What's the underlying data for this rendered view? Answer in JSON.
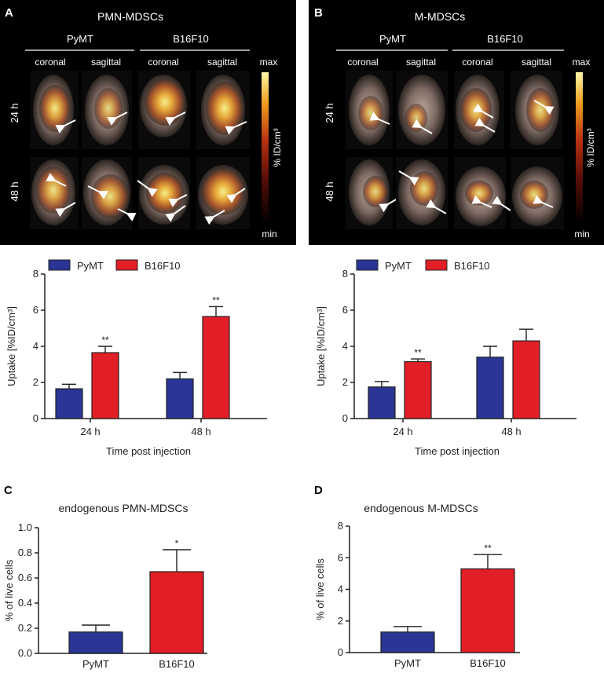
{
  "panels": {
    "A": {
      "letter": "A",
      "title": "PMN-MDSCs",
      "groups": [
        "PyMT",
        "B16F10"
      ],
      "views": [
        "coronal",
        "sagittal",
        "coronal",
        "sagittal"
      ],
      "rows": [
        "24 h",
        "48 h"
      ],
      "scale": {
        "max": "max",
        "min": "min",
        "label": "% ID/cm³"
      }
    },
    "B": {
      "letter": "B",
      "title": "M-MDSCs",
      "groups": [
        "PyMT",
        "B16F10"
      ],
      "views": [
        "coronal",
        "sagittal",
        "coronal",
        "sagittal"
      ],
      "rows": [
        "24 h",
        "48 h"
      ],
      "scale": {
        "max": "max",
        "min": "min",
        "label": "% ID/cm³"
      }
    },
    "C": {
      "letter": "C",
      "title": "endogenous PMN-MDSCs"
    },
    "D": {
      "letter": "D",
      "title": "endogenous M-MDSCs"
    }
  },
  "colors": {
    "pymt": "#2b3595",
    "b16": "#e21f26",
    "axis": "#222222"
  },
  "chart_data": [
    {
      "id": "A",
      "type": "bar",
      "categories": [
        "24 h",
        "48 h"
      ],
      "series": [
        {
          "name": "PyMT",
          "values": [
            1.65,
            2.2
          ],
          "errors": [
            0.25,
            0.35
          ]
        },
        {
          "name": "B16F10",
          "values": [
            3.65,
            5.65
          ],
          "errors": [
            0.35,
            0.55
          ]
        }
      ],
      "significance": [
        {
          "category": 0,
          "series": 1,
          "text": "**"
        },
        {
          "category": 1,
          "series": 1,
          "text": "**"
        }
      ],
      "xlabel": "Time post injection",
      "ylabel": "Uptake [%ID/cm³]",
      "ylim": [
        0,
        8
      ],
      "yticks": [
        0,
        2,
        4,
        6,
        8
      ],
      "legend": "top-left"
    },
    {
      "id": "B",
      "type": "bar",
      "categories": [
        "24 h",
        "48 h"
      ],
      "series": [
        {
          "name": "PyMT",
          "values": [
            1.75,
            3.4
          ],
          "errors": [
            0.3,
            0.6
          ]
        },
        {
          "name": "B16F10",
          "values": [
            3.15,
            4.3
          ],
          "errors": [
            0.15,
            0.65
          ]
        }
      ],
      "significance": [
        {
          "category": 0,
          "series": 1,
          "text": "**"
        }
      ],
      "xlabel": "Time post injection",
      "ylabel": "Uptake [%ID/cm³]",
      "ylim": [
        0,
        8
      ],
      "yticks": [
        0,
        2,
        4,
        6,
        8
      ],
      "legend": "top-left"
    },
    {
      "id": "C",
      "type": "bar",
      "categories": [
        "PyMT",
        "B16F10"
      ],
      "values": [
        0.17,
        0.65
      ],
      "errors": [
        0.055,
        0.175
      ],
      "significance": [
        {
          "index": 1,
          "text": "*"
        }
      ],
      "title": "endogenous PMN-MDSCs",
      "ylabel": "% of live cells",
      "ylim": [
        0,
        1.0
      ],
      "yticks": [
        "0.0",
        "0.2",
        "0.4",
        "0.6",
        "0.8",
        "1.0"
      ]
    },
    {
      "id": "D",
      "type": "bar",
      "categories": [
        "PyMT",
        "B16F10"
      ],
      "values": [
        1.3,
        5.3
      ],
      "errors": [
        0.35,
        0.9
      ],
      "significance": [
        {
          "index": 1,
          "text": "**"
        }
      ],
      "title": "endogenous M-MDSCs",
      "ylabel": "% of live cells",
      "ylim": [
        0,
        8
      ],
      "yticks": [
        "0",
        "2",
        "4",
        "6",
        "8"
      ]
    }
  ]
}
